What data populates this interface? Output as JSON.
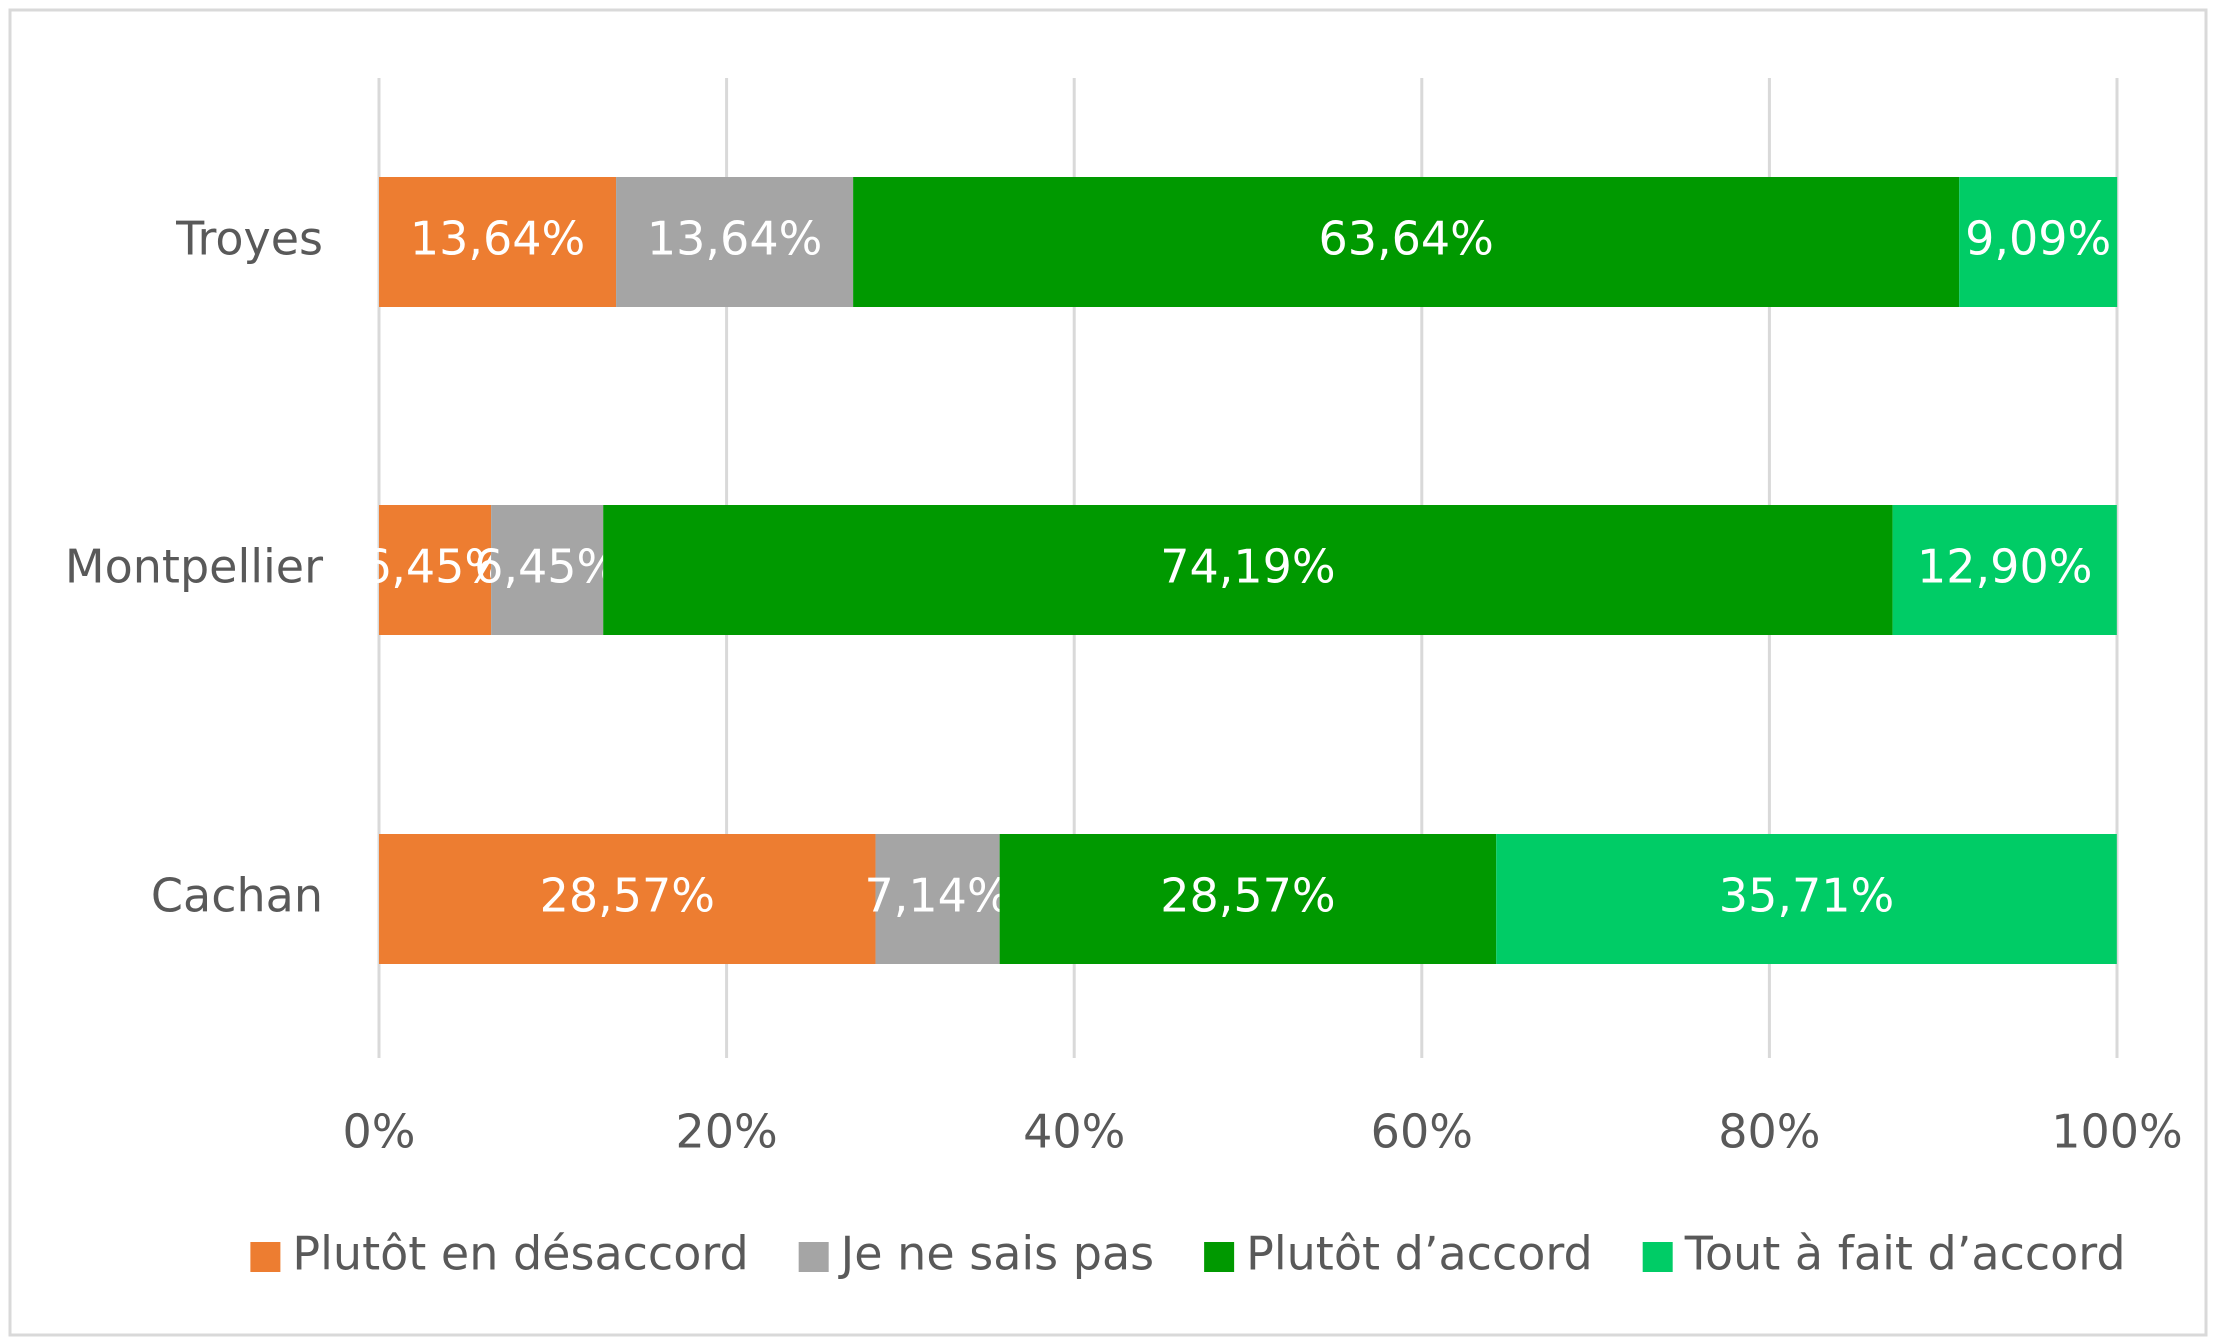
{
  "chart_data": {
    "type": "stacked-bar-horizontal",
    "categories": [
      "Troyes",
      "Montpellier",
      "Cachan"
    ],
    "series": [
      {
        "name": "Plutôt en désaccord",
        "color": "#ED7D31",
        "values": [
          13.64,
          6.45,
          28.57
        ],
        "value_labels": [
          "13,64%",
          "6,45%",
          "28,57%"
        ]
      },
      {
        "name": "Je ne sais pas",
        "color": "#A5A5A5",
        "values": [
          13.64,
          6.45,
          7.14
        ],
        "value_labels": [
          "13,64%",
          "6,45%",
          "7,14%"
        ]
      },
      {
        "name": "Plutôt d’accord",
        "color": "#009900",
        "values": [
          63.64,
          74.19,
          28.57
        ],
        "value_labels": [
          "63,64%",
          "74,19%",
          "28,57%"
        ]
      },
      {
        "name": "Tout à fait d’accord",
        "color": "#00CC66",
        "values": [
          9.09,
          12.9,
          35.71
        ],
        "value_labels": [
          "9,09%",
          "12,90%",
          "35,71%"
        ]
      }
    ],
    "xlim": [
      0,
      100
    ],
    "xticks": [
      {
        "value": 0,
        "label": "0%"
      },
      {
        "value": 20,
        "label": "20%"
      },
      {
        "value": 40,
        "label": "40%"
      },
      {
        "value": 60,
        "label": "60%"
      },
      {
        "value": 80,
        "label": "80%"
      },
      {
        "value": 100,
        "label": "100%"
      }
    ],
    "grid": true,
    "legend": "bottom"
  }
}
